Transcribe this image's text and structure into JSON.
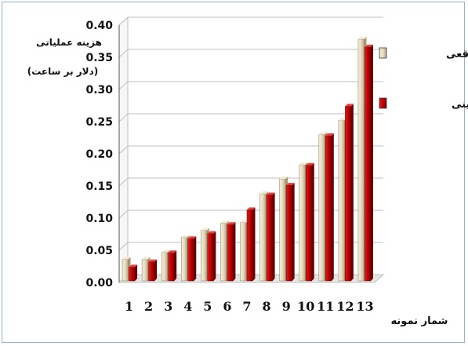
{
  "chart_data": {
    "type": "bar",
    "categories": [
      "1",
      "2",
      "3",
      "4",
      "5",
      "6",
      "7",
      "8",
      "9",
      "10",
      "11",
      "12",
      "13"
    ],
    "ylabel_line1": "هزینه عملیاتی",
    "ylabel_line2": "(دلار بر ساعت)",
    "xlabel": "شمار نمونه",
    "ylim": [
      0,
      0.4
    ],
    "yticks": [
      "0.00",
      "0.05",
      "0.10",
      "0.15",
      "0.20",
      "0.25",
      "0.30",
      "0.35",
      "0.40"
    ],
    "grid": true,
    "legend_position": "top-right",
    "series": [
      {
        "name": "مقادیر واقعی",
        "color": "#e8dcc0",
        "values": [
          0.036,
          0.036,
          0.047,
          0.07,
          0.081,
          0.092,
          0.093,
          0.138,
          0.161,
          0.183,
          0.23,
          0.252,
          0.378
        ]
      },
      {
        "name": "مقادیر تخمینی",
        "color": "#c00000",
        "values": [
          0.024,
          0.032,
          0.046,
          0.068,
          0.076,
          0.09,
          0.113,
          0.136,
          0.151,
          0.182,
          0.228,
          0.274,
          0.366
        ]
      }
    ]
  }
}
